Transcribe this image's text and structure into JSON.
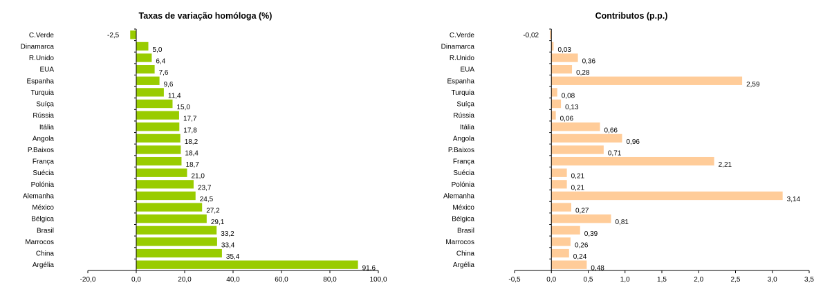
{
  "chart_data": [
    {
      "type": "bar",
      "orientation": "horizontal",
      "title": "Taxas de variação homóloga (%)",
      "categories": [
        "C.Verde",
        "Dinamarca",
        "R.Unido",
        "EUA",
        "Espanha",
        "Turquia",
        "Suíça",
        "Rússia",
        "Itália",
        "Angola",
        "P.Baixos",
        "França",
        "Suécia",
        "Polónia",
        "Alemanha",
        "México",
        "Bélgica",
        "Brasil",
        "Marrocos",
        "China",
        "Argélia"
      ],
      "values": [
        -2.5,
        5.0,
        6.4,
        7.6,
        9.6,
        11.4,
        15.0,
        17.7,
        17.8,
        18.2,
        18.4,
        18.7,
        21.0,
        23.7,
        24.5,
        27.2,
        29.1,
        33.2,
        33.4,
        35.4,
        91.6
      ],
      "value_labels": [
        "-2,5",
        "5,0",
        "6,4",
        "7,6",
        "9,6",
        "11,4",
        "15,0",
        "17,7",
        "17,8",
        "18,2",
        "18,4",
        "18,7",
        "21,0",
        "23,7",
        "24,5",
        "27,2",
        "29,1",
        "33,2",
        "33,4",
        "35,4",
        "91,6"
      ],
      "xlim": [
        -20,
        100
      ],
      "x_ticks": [
        -20,
        0,
        20,
        40,
        60,
        80,
        100
      ],
      "x_tick_labels": [
        "-20,0",
        "0,0",
        "20,0",
        "40,0",
        "60,0",
        "80,0",
        "100,0"
      ],
      "bar_color": "#99cc00",
      "grid": false,
      "legend": "none"
    },
    {
      "type": "bar",
      "orientation": "horizontal",
      "title": "Contributos (p.p.)",
      "categories": [
        "C.Verde",
        "Dinamarca",
        "R.Unido",
        "EUA",
        "Espanha",
        "Turquia",
        "Suíça",
        "Rússia",
        "Itália",
        "Angola",
        "P.Baixos",
        "França",
        "Suécia",
        "Polónia",
        "Alemanha",
        "México",
        "Bélgica",
        "Brasil",
        "Marrocos",
        "China",
        "Argélia"
      ],
      "values": [
        -0.02,
        0.03,
        0.36,
        0.28,
        2.59,
        0.08,
        0.13,
        0.06,
        0.66,
        0.96,
        0.71,
        2.21,
        0.21,
        0.21,
        3.14,
        0.27,
        0.81,
        0.39,
        0.26,
        0.24,
        0.48
      ],
      "value_labels": [
        "-0,02",
        "0,03",
        "0,36",
        "0,28",
        "2,59",
        "0,08",
        "0,13",
        "0,06",
        "0,66",
        "0,96",
        "0,71",
        "2,21",
        "0,21",
        "0,21",
        "3,14",
        "0,27",
        "0,81",
        "0,39",
        "0,26",
        "0,24",
        "0,48"
      ],
      "xlim": [
        -0.5,
        3.5
      ],
      "x_ticks": [
        -0.5,
        0,
        0.5,
        1.0,
        1.5,
        2.0,
        2.5,
        3.0,
        3.5
      ],
      "x_tick_labels": [
        "-0,5",
        "0,0",
        "0,5",
        "1,0",
        "1,5",
        "2,0",
        "2,5",
        "3,0",
        "3,5"
      ],
      "bar_color": "#ffcc99",
      "grid": false,
      "legend": "none"
    }
  ]
}
